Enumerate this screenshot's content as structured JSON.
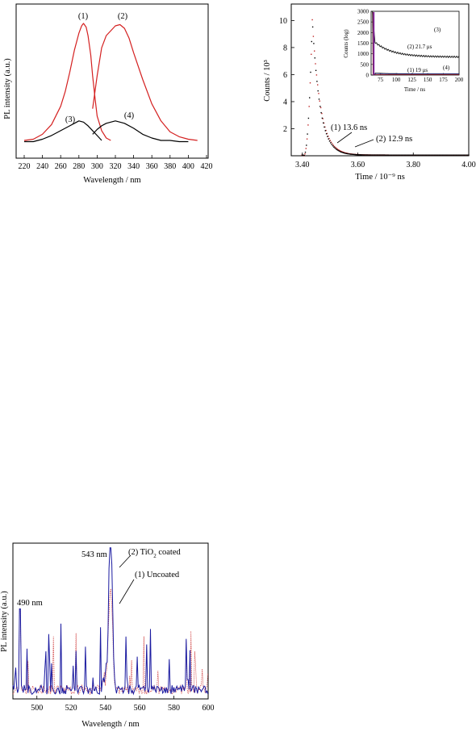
{
  "chart_data": [
    {
      "id": "pl-uv",
      "type": "line",
      "title": "",
      "xlabel": "Wavelength / nm",
      "ylabel": "PL intensity (a.u.)",
      "xlim": [
        220,
        420
      ],
      "ylim": [
        0,
        1
      ],
      "xticks": [
        220,
        240,
        260,
        280,
        300,
        320,
        340,
        360,
        380,
        400,
        420
      ],
      "colors": {
        "red": "#d42020",
        "black": "#000000"
      },
      "series": [
        {
          "label": "(1)",
          "color": "#d42020",
          "x": [
            220,
            230,
            240,
            250,
            260,
            265,
            270,
            275,
            280,
            283,
            285,
            288,
            290,
            293,
            295,
            298,
            300,
            305,
            310,
            315
          ],
          "y": [
            0.02,
            0.03,
            0.07,
            0.15,
            0.3,
            0.42,
            0.58,
            0.76,
            0.9,
            0.96,
            0.98,
            0.95,
            0.88,
            0.72,
            0.55,
            0.35,
            0.22,
            0.1,
            0.04,
            0.02
          ]
        },
        {
          "label": "(2)",
          "color": "#d42020",
          "x": [
            295,
            300,
            305,
            310,
            315,
            320,
            325,
            330,
            335,
            340,
            350,
            360,
            370,
            380,
            390,
            400,
            410
          ],
          "y": [
            0.28,
            0.55,
            0.78,
            0.88,
            0.92,
            0.96,
            0.97,
            0.94,
            0.86,
            0.74,
            0.52,
            0.32,
            0.18,
            0.09,
            0.05,
            0.03,
            0.02
          ]
        },
        {
          "label": "(3)",
          "color": "#000000",
          "x": [
            220,
            230,
            240,
            250,
            260,
            270,
            275,
            280,
            285,
            290,
            295,
            300,
            305
          ],
          "y": [
            0.01,
            0.01,
            0.03,
            0.06,
            0.1,
            0.14,
            0.16,
            0.18,
            0.17,
            0.14,
            0.1,
            0.06,
            0.02
          ]
        },
        {
          "label": "(4)",
          "color": "#000000",
          "x": [
            295,
            300,
            305,
            310,
            315,
            320,
            325,
            330,
            340,
            350,
            360,
            370,
            380,
            390,
            400
          ],
          "y": [
            0.07,
            0.11,
            0.14,
            0.16,
            0.17,
            0.18,
            0.17,
            0.16,
            0.12,
            0.07,
            0.04,
            0.02,
            0.02,
            0.01,
            0.01
          ]
        }
      ]
    },
    {
      "id": "decay",
      "type": "scatter",
      "title": "",
      "xlabel": "Time / 10⁻⁹ ns",
      "ylabel": "Counts / 10³",
      "xlim": [
        3.36,
        4.0
      ],
      "ylim": [
        0,
        10.5
      ],
      "xticks": [
        "3.40",
        "3.60",
        "3.80",
        "4.00"
      ],
      "yticks": [
        "2",
        "4",
        "6",
        "8",
        "10"
      ],
      "annotations": [
        {
          "text": "(1) 13.6 ns"
        },
        {
          "text": "(2) 12.9 ns"
        }
      ],
      "colors": {
        "series1": "#c02828",
        "series2": "#000000"
      },
      "inset": {
        "type": "line",
        "xlabel": "Time / ns",
        "ylabel": "Counts (log)",
        "xlim": [
          60,
          200
        ],
        "ylim": [
          0,
          3000
        ],
        "xticks": [
          "75",
          "100",
          "125",
          "150",
          "175",
          "200"
        ],
        "yticks": [
          "0",
          "500",
          "1000",
          "1500",
          "2000",
          "2500",
          "3000"
        ],
        "labels": {
          "l3": "(3)",
          "l4": "(4)",
          "l2": "(2) 21.7 μs",
          "l1": "(1) 19 μs"
        }
      }
    },
    {
      "id": "pl-green",
      "type": "line",
      "title": "",
      "xlabel": "Wavelength / nm",
      "ylabel": "PL intensity (a.u.)",
      "xlim": [
        486,
        600
      ],
      "ylim": [
        0,
        1
      ],
      "xticks": [
        "500",
        "520",
        "540",
        "560",
        "580",
        "600"
      ],
      "annotations": {
        "peak": "543 nm",
        "p490": "490 nm",
        "s2": "(2) TiO",
        "s2sub": "2",
        "s2tail": " coated",
        "s1": "(1) Uncoated"
      },
      "colors": {
        "coated": "#1a1aa0",
        "uncoated": "#d04040"
      }
    }
  ]
}
